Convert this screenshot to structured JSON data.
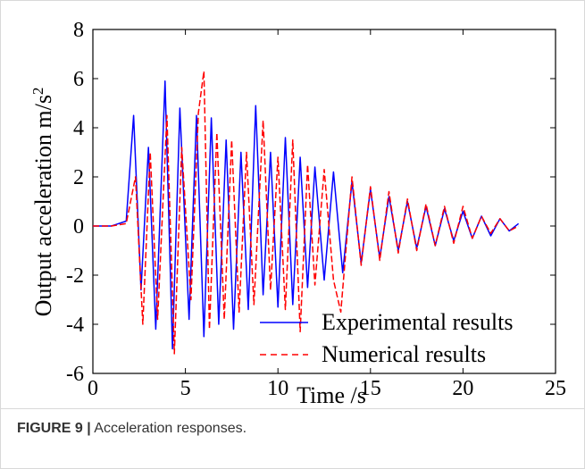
{
  "chart_data": {
    "type": "line",
    "xlabel": "Time /s",
    "ylabel": "Output acceleration m/s",
    "ylabel_superscript": "2",
    "xlim": [
      0,
      25
    ],
    "ylim": [
      -6,
      8
    ],
    "x_ticks": [
      "0",
      "5",
      "10",
      "15",
      "20",
      "25"
    ],
    "y_ticks": [
      "-6",
      "-4",
      "-2",
      "0",
      "2",
      "4",
      "6",
      "8"
    ],
    "grid": false,
    "legend_position": "bottom-right",
    "series": [
      {
        "name": "Experimental results",
        "color": "#0000ff",
        "style": "solid",
        "x": [
          0,
          1,
          1.8,
          2.2,
          2.6,
          3.0,
          3.4,
          3.9,
          4.3,
          4.7,
          5.2,
          5.6,
          6.0,
          6.4,
          6.8,
          7.2,
          7.6,
          8.0,
          8.4,
          8.8,
          9.2,
          9.6,
          10.0,
          10.4,
          10.8,
          11.2,
          11.6,
          12.0,
          12.5,
          13.0,
          13.5,
          14.0,
          14.5,
          15.0,
          15.5,
          16.0,
          16.5,
          17.0,
          17.5,
          18.0,
          18.5,
          19.0,
          19.5,
          20.0,
          20.5,
          21.0,
          21.5,
          22.0,
          22.5,
          23.0
        ],
        "y": [
          0,
          0,
          0.2,
          4.5,
          -2.6,
          3.2,
          -4.2,
          5.9,
          -5.0,
          4.8,
          -3.8,
          4.5,
          -4.5,
          4.4,
          -4.0,
          3.5,
          -4.2,
          3.0,
          -3.4,
          4.9,
          -2.8,
          3.0,
          -3.3,
          3.6,
          -3.2,
          2.8,
          -2.5,
          2.4,
          -2.2,
          2.2,
          -1.9,
          1.8,
          -1.5,
          1.5,
          -1.3,
          1.2,
          -1.0,
          1.0,
          -0.9,
          0.8,
          -0.8,
          0.7,
          -0.6,
          0.6,
          -0.5,
          0.4,
          -0.4,
          0.3,
          -0.2,
          0.1
        ]
      },
      {
        "name": "Numerical results",
        "color": "#ff0000",
        "style": "dashed",
        "x": [
          0,
          1,
          1.8,
          2.3,
          2.7,
          3.1,
          3.5,
          4.0,
          4.4,
          4.8,
          5.3,
          5.7,
          6.0,
          6.3,
          6.7,
          7.1,
          7.5,
          7.9,
          8.3,
          8.7,
          9.2,
          9.6,
          10.0,
          10.4,
          10.8,
          11.2,
          11.6,
          12.0,
          12.5,
          13.0,
          13.4,
          14.0,
          14.5,
          15.0,
          15.5,
          16.0,
          16.5,
          17.0,
          17.5,
          18.0,
          18.5,
          19.0,
          19.5,
          20.0,
          20.5,
          21.0,
          21.5,
          22.0,
          22.5,
          23.0
        ],
        "y": [
          0,
          0,
          0.1,
          2.0,
          -4.0,
          3.0,
          -3.8,
          4.5,
          -5.2,
          3.2,
          -3.0,
          4.6,
          6.3,
          -4.2,
          3.8,
          -3.8,
          3.5,
          -3.5,
          3.0,
          -3.2,
          4.3,
          -2.6,
          2.8,
          -3.4,
          3.5,
          -4.3,
          2.5,
          -2.4,
          2.3,
          -2.2,
          -3.5,
          2.0,
          -1.6,
          1.6,
          -1.4,
          1.4,
          -1.1,
          1.1,
          -1.0,
          0.9,
          -0.8,
          0.8,
          -0.7,
          0.8,
          -0.5,
          0.4,
          -0.3,
          0.3,
          -0.2,
          0.0
        ]
      }
    ]
  },
  "caption": {
    "label": "FIGURE 9 |",
    "text": " Acceleration responses."
  }
}
